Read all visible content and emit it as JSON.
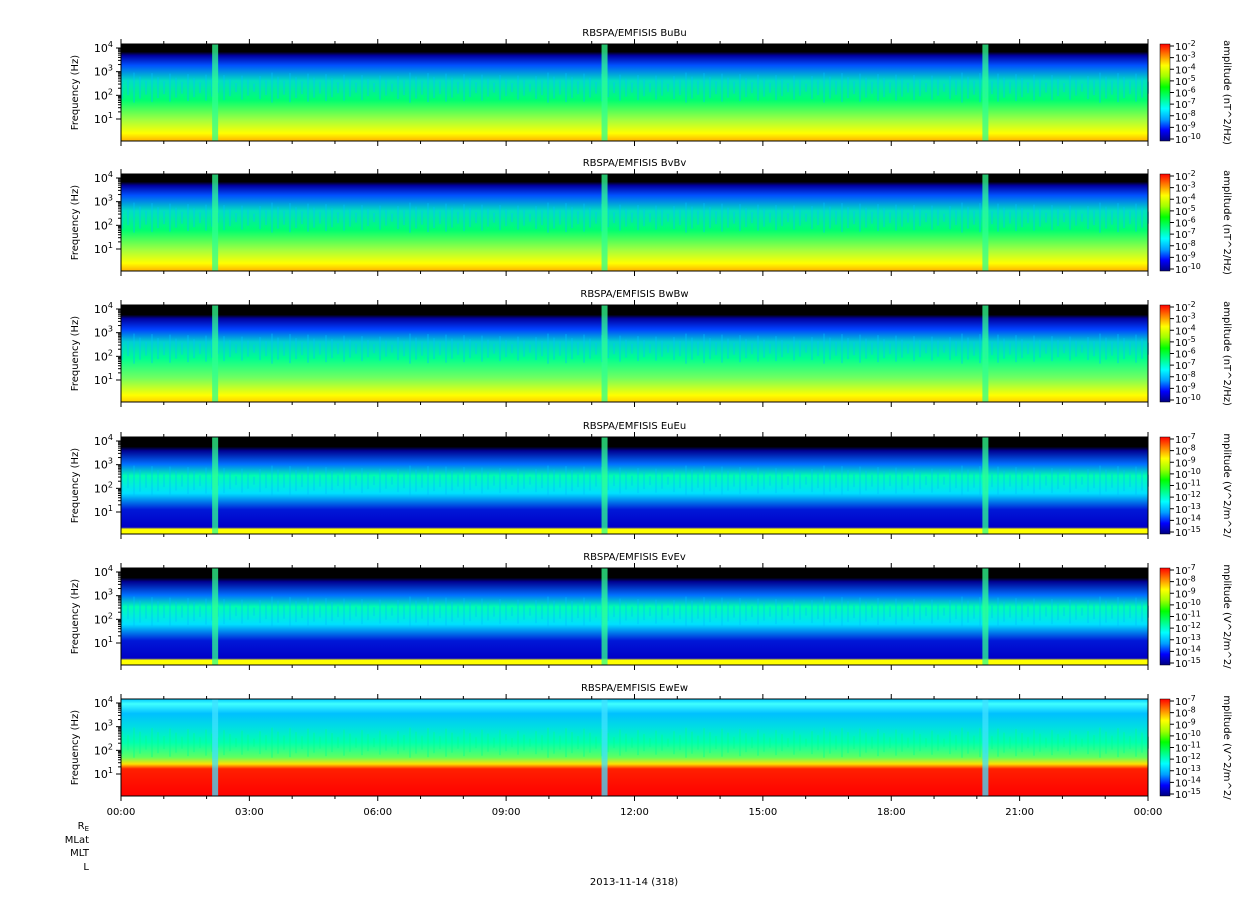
{
  "figure": {
    "date_label": "2013-11-14 (318)",
    "ephemeris_labels": [
      "R_E",
      "MLat",
      "MLT",
      "L"
    ]
  },
  "chart_data": [
    {
      "type": "heatmap",
      "title": "RBSPA/EMFISIS  BuBu",
      "ylabel": "Frequency (Hz)",
      "ylog": true,
      "yticks": [
        {
          "base": "10",
          "exp": "1"
        },
        {
          "base": "10",
          "exp": "2"
        },
        {
          "base": "10",
          "exp": "3"
        },
        {
          "base": "10",
          "exp": "4"
        }
      ],
      "colorbar": {
        "label": "amplitude (nT^2/Hz)",
        "ticks": [
          "-2",
          "-3",
          "-4",
          "-5",
          "-6",
          "-7",
          "-8",
          "-9",
          "-10"
        ],
        "range": [
          -10,
          -2
        ]
      },
      "kind": "B"
    },
    {
      "type": "heatmap",
      "title": "RBSPA/EMFISIS  BvBv",
      "ylabel": "Frequency (Hz)",
      "ylog": true,
      "yticks": [
        {
          "base": "10",
          "exp": "1"
        },
        {
          "base": "10",
          "exp": "2"
        },
        {
          "base": "10",
          "exp": "3"
        },
        {
          "base": "10",
          "exp": "4"
        }
      ],
      "colorbar": {
        "label": "amplitude (nT^2/Hz)",
        "ticks": [
          "-2",
          "-3",
          "-4",
          "-5",
          "-6",
          "-7",
          "-8",
          "-9",
          "-10"
        ],
        "range": [
          -10,
          -2
        ]
      },
      "kind": "B"
    },
    {
      "type": "heatmap",
      "title": "RBSPA/EMFISIS  BwBw",
      "ylabel": "Frequency (Hz)",
      "ylog": true,
      "yticks": [
        {
          "base": "10",
          "exp": "1"
        },
        {
          "base": "10",
          "exp": "2"
        },
        {
          "base": "10",
          "exp": "3"
        },
        {
          "base": "10",
          "exp": "4"
        }
      ],
      "colorbar": {
        "label": "amplitude (nT^2/Hz)",
        "ticks": [
          "-2",
          "-3",
          "-4",
          "-5",
          "-6",
          "-7",
          "-8",
          "-9",
          "-10"
        ],
        "range": [
          -10,
          -2
        ]
      },
      "kind": "Bw"
    },
    {
      "type": "heatmap",
      "title": "RBSPA/EMFISIS  EuEu",
      "ylabel": "Frequency (Hz)",
      "ylog": true,
      "yticks": [
        {
          "base": "10",
          "exp": "1"
        },
        {
          "base": "10",
          "exp": "2"
        },
        {
          "base": "10",
          "exp": "3"
        },
        {
          "base": "10",
          "exp": "4"
        }
      ],
      "colorbar": {
        "label": "mplitude (V^2/m^2/",
        "ticks": [
          "-7",
          "-8",
          "-9",
          "-10",
          "-11",
          "-12",
          "-13",
          "-14",
          "-15"
        ],
        "range": [
          -15,
          -7
        ]
      },
      "kind": "E"
    },
    {
      "type": "heatmap",
      "title": "RBSPA/EMFISIS  EvEv",
      "ylabel": "Frequency (Hz)",
      "ylog": true,
      "yticks": [
        {
          "base": "10",
          "exp": "1"
        },
        {
          "base": "10",
          "exp": "2"
        },
        {
          "base": "10",
          "exp": "3"
        },
        {
          "base": "10",
          "exp": "4"
        }
      ],
      "colorbar": {
        "label": "mplitude (V^2/m^2/",
        "ticks": [
          "-7",
          "-8",
          "-9",
          "-10",
          "-11",
          "-12",
          "-13",
          "-14",
          "-15"
        ],
        "range": [
          -15,
          -7
        ]
      },
      "kind": "E"
    },
    {
      "type": "heatmap",
      "title": "RBSPA/EMFISIS  EwEw",
      "ylabel": "Frequency (Hz)",
      "ylog": true,
      "yticks": [
        {
          "base": "10",
          "exp": "1"
        },
        {
          "base": "10",
          "exp": "2"
        },
        {
          "base": "10",
          "exp": "3"
        },
        {
          "base": "10",
          "exp": "4"
        }
      ],
      "colorbar": {
        "label": "mplitude (V^2/m^2/",
        "ticks": [
          "-7",
          "-8",
          "-9",
          "-10",
          "-11",
          "-12",
          "-13",
          "-14",
          "-15"
        ],
        "range": [
          -15,
          -7
        ]
      },
      "kind": "Ew",
      "xticks": [
        "00:00",
        "03:00",
        "06:00",
        "09:00",
        "12:00",
        "15:00",
        "18:00",
        "21:00",
        "00:00"
      ]
    }
  ]
}
